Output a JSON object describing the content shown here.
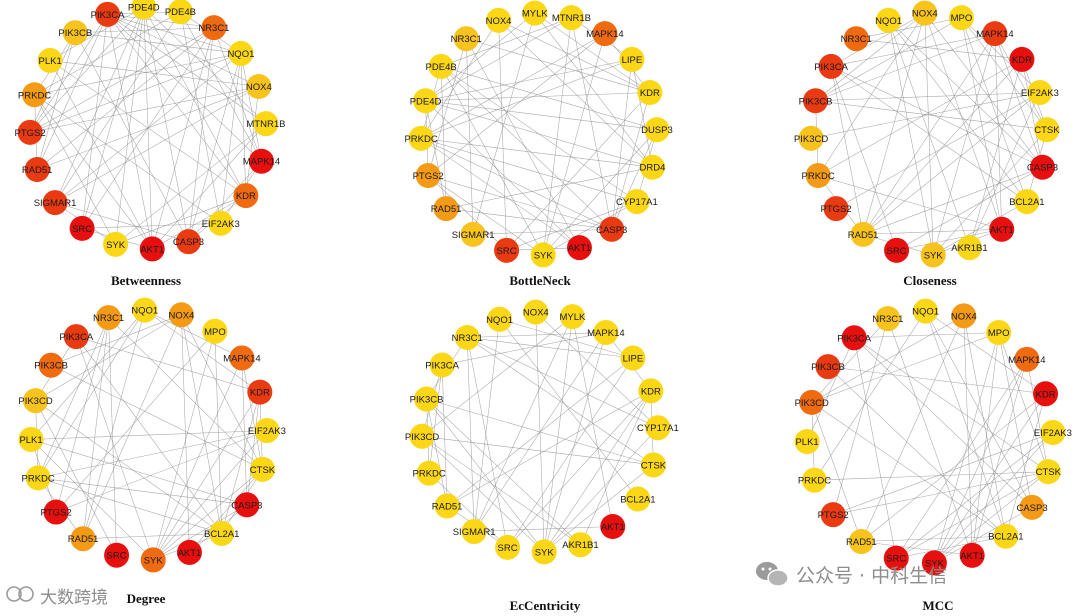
{
  "colors": {
    "red": "#e8100f",
    "red_orange": "#ea3a12",
    "orange": "#f06a10",
    "light_orange": "#f59a14",
    "yellow_orange": "#f8c31c",
    "yellow": "#fbd716"
  },
  "panels": [
    {
      "title": "Betweenness",
      "nodes": [
        {
          "label": "PIK3CA",
          "color": "#ea3a12"
        },
        {
          "label": "PDE4D",
          "color": "#fbd716"
        },
        {
          "label": "PDE4B",
          "color": "#fbd716"
        },
        {
          "label": "NR3C1",
          "color": "#f06a10"
        },
        {
          "label": "NQO1",
          "color": "#fbd716"
        },
        {
          "label": "NOX4",
          "color": "#f8c31c"
        },
        {
          "label": "MTNR1B",
          "color": "#fbd716"
        },
        {
          "label": "MAPK14",
          "color": "#e8100f"
        },
        {
          "label": "KDR",
          "color": "#f06a10"
        },
        {
          "label": "EIF2AK3",
          "color": "#fbd716"
        },
        {
          "label": "CASP3",
          "color": "#ea3a12"
        },
        {
          "label": "AKT1",
          "color": "#e8100f"
        },
        {
          "label": "SYK",
          "color": "#fbd716"
        },
        {
          "label": "SRC",
          "color": "#e8100f"
        },
        {
          "label": "SIGMAR1",
          "color": "#ea3a12"
        },
        {
          "label": "RAD51",
          "color": "#ea3a12"
        },
        {
          "label": "PTGS2",
          "color": "#ea3a12"
        },
        {
          "label": "PRKDC",
          "color": "#f59a14"
        },
        {
          "label": "PLK1",
          "color": "#fbd716"
        },
        {
          "label": "PIK3CB",
          "color": "#f8c31c"
        }
      ]
    },
    {
      "title": "BottleNeck",
      "nodes": [
        {
          "label": "NOX4",
          "color": "#fbd716"
        },
        {
          "label": "MYLK",
          "color": "#fbd716"
        },
        {
          "label": "MTNR1B",
          "color": "#fbd716"
        },
        {
          "label": "MAPK14",
          "color": "#f06a10"
        },
        {
          "label": "LIPE",
          "color": "#fbd716"
        },
        {
          "label": "KDR",
          "color": "#fbd716"
        },
        {
          "label": "DUSP3",
          "color": "#fbd716"
        },
        {
          "label": "DRD4",
          "color": "#fbd716"
        },
        {
          "label": "CYP17A1",
          "color": "#fbd716"
        },
        {
          "label": "CASP3",
          "color": "#ea3a12"
        },
        {
          "label": "AKT1",
          "color": "#e8100f"
        },
        {
          "label": "SYK",
          "color": "#fbd716"
        },
        {
          "label": "SRC",
          "color": "#ea3a12"
        },
        {
          "label": "SIGMAR1",
          "color": "#f8c31c"
        },
        {
          "label": "RAD51",
          "color": "#f59a14"
        },
        {
          "label": "PTGS2",
          "color": "#f59a14"
        },
        {
          "label": "PRKDC",
          "color": "#fbd716"
        },
        {
          "label": "PDE4D",
          "color": "#fbd716"
        },
        {
          "label": "PDE4B",
          "color": "#fbd716"
        },
        {
          "label": "NR3C1",
          "color": "#f8c31c"
        }
      ]
    },
    {
      "title": "Closeness",
      "nodes": [
        {
          "label": "NQO1",
          "color": "#fbd716"
        },
        {
          "label": "NOX4",
          "color": "#f8c31c"
        },
        {
          "label": "MPO",
          "color": "#fbd716"
        },
        {
          "label": "MAPK14",
          "color": "#ea3a12"
        },
        {
          "label": "KDR",
          "color": "#e8100f"
        },
        {
          "label": "EIF2AK3",
          "color": "#fbd716"
        },
        {
          "label": "CTSK",
          "color": "#fbd716"
        },
        {
          "label": "CASP3",
          "color": "#e8100f"
        },
        {
          "label": "BCL2A1",
          "color": "#fbd716"
        },
        {
          "label": "AKT1",
          "color": "#e8100f"
        },
        {
          "label": "AKR1B1",
          "color": "#fbd716"
        },
        {
          "label": "SYK",
          "color": "#f8c31c"
        },
        {
          "label": "SRC",
          "color": "#e8100f"
        },
        {
          "label": "RAD51",
          "color": "#f8c31c"
        },
        {
          "label": "PTGS2",
          "color": "#ea3a12"
        },
        {
          "label": "PRKDC",
          "color": "#f59a14"
        },
        {
          "label": "PIK3CD",
          "color": "#f8c31c"
        },
        {
          "label": "PIK3CB",
          "color": "#ea3a12"
        },
        {
          "label": "PIK3CA",
          "color": "#ea3a12"
        },
        {
          "label": "NR3C1",
          "color": "#f06a10"
        }
      ]
    },
    {
      "title": "Degree",
      "nodes": [
        {
          "label": "NR3C1",
          "color": "#f59a14"
        },
        {
          "label": "NQO1",
          "color": "#fbd716"
        },
        {
          "label": "NOX4",
          "color": "#f59a14"
        },
        {
          "label": "MPO",
          "color": "#fbd716"
        },
        {
          "label": "MAPK14",
          "color": "#f06a10"
        },
        {
          "label": "KDR",
          "color": "#ea3a12"
        },
        {
          "label": "EIF2AK3",
          "color": "#fbd716"
        },
        {
          "label": "CTSK",
          "color": "#fbd716"
        },
        {
          "label": "CASP3",
          "color": "#e8100f"
        },
        {
          "label": "BCL2A1",
          "color": "#fbd716"
        },
        {
          "label": "AKT1",
          "color": "#e8100f"
        },
        {
          "label": "SYK",
          "color": "#f06a10"
        },
        {
          "label": "SRC",
          "color": "#e8100f"
        },
        {
          "label": "RAD51",
          "color": "#f59a14"
        },
        {
          "label": "PTGS2",
          "color": "#e8100f"
        },
        {
          "label": "PRKDC",
          "color": "#fbd716"
        },
        {
          "label": "PLK1",
          "color": "#fbd716"
        },
        {
          "label": "PIK3CD",
          "color": "#f8c31c"
        },
        {
          "label": "PIK3CB",
          "color": "#f06a10"
        },
        {
          "label": "PIK3CA",
          "color": "#ea3a12"
        }
      ]
    },
    {
      "title": "EcCentricity",
      "nodes": [
        {
          "label": "NQO1",
          "color": "#fbd716"
        },
        {
          "label": "NOX4",
          "color": "#fbd716"
        },
        {
          "label": "MYLK",
          "color": "#fbd716"
        },
        {
          "label": "MAPK14",
          "color": "#fbd716"
        },
        {
          "label": "LIPE",
          "color": "#fbd716"
        },
        {
          "label": "KDR",
          "color": "#fbd716"
        },
        {
          "label": "CYP17A1",
          "color": "#fbd716"
        },
        {
          "label": "CTSK",
          "color": "#fbd716"
        },
        {
          "label": "BCL2A1",
          "color": "#fbd716"
        },
        {
          "label": "AKT1",
          "color": "#e8100f"
        },
        {
          "label": "AKR1B1",
          "color": "#fbd716"
        },
        {
          "label": "SYK",
          "color": "#fbd716"
        },
        {
          "label": "SRC",
          "color": "#fbd716"
        },
        {
          "label": "SIGMAR1",
          "color": "#fbd716"
        },
        {
          "label": "RAD51",
          "color": "#fbd716"
        },
        {
          "label": "PRKDC",
          "color": "#fbd716"
        },
        {
          "label": "PIK3CD",
          "color": "#fbd716"
        },
        {
          "label": "PIK3CB",
          "color": "#fbd716"
        },
        {
          "label": "PIK3CA",
          "color": "#fbd716"
        },
        {
          "label": "NR3C1",
          "color": "#fbd716"
        }
      ]
    },
    {
      "title": "MCC",
      "nodes": [
        {
          "label": "NR3C1",
          "color": "#f8c31c"
        },
        {
          "label": "NQO1",
          "color": "#fbd716"
        },
        {
          "label": "NOX4",
          "color": "#f59a14"
        },
        {
          "label": "MPO",
          "color": "#fbd716"
        },
        {
          "label": "MAPK14",
          "color": "#f06a10"
        },
        {
          "label": "KDR",
          "color": "#e8100f"
        },
        {
          "label": "EIF2AK3",
          "color": "#fbd716"
        },
        {
          "label": "CTSK",
          "color": "#fbd716"
        },
        {
          "label": "CASP3",
          "color": "#f59a14"
        },
        {
          "label": "BCL2A1",
          "color": "#fbd716"
        },
        {
          "label": "AKT1",
          "color": "#e8100f"
        },
        {
          "label": "SYK",
          "color": "#e8100f"
        },
        {
          "label": "SRC",
          "color": "#e8100f"
        },
        {
          "label": "RAD51",
          "color": "#f8c31c"
        },
        {
          "label": "PTGS2",
          "color": "#ea3a12"
        },
        {
          "label": "PRKDC",
          "color": "#fbd716"
        },
        {
          "label": "PLK1",
          "color": "#fbd716"
        },
        {
          "label": "PIK3CD",
          "color": "#f06a10"
        },
        {
          "label": "PIK3CB",
          "color": "#ea3a12"
        },
        {
          "label": "PIK3CA",
          "color": "#e8100f"
        }
      ]
    }
  ],
  "watermarks": {
    "bottom_left": "大数跨境",
    "bottom_right": "公众号 · 中科生信"
  }
}
